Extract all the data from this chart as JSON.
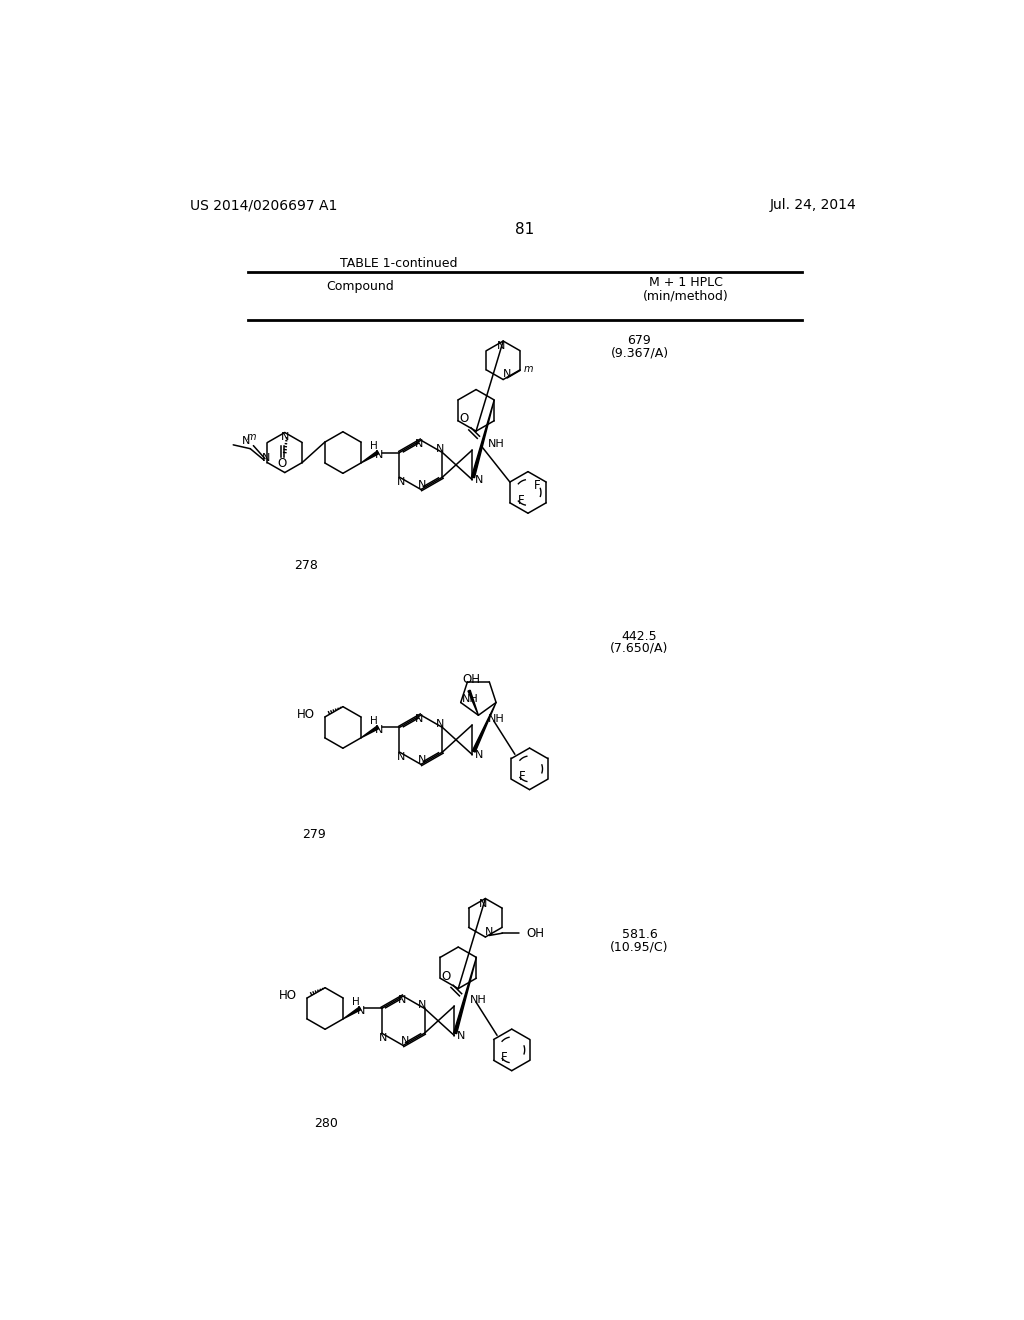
{
  "page_header_left": "US 2014/0206697 A1",
  "page_header_right": "Jul. 24, 2014",
  "page_number": "81",
  "table_title": "TABLE 1-continued",
  "col1_header": "Compound",
  "col2_header_line1": "M + 1 HPLC",
  "col2_header_line2": "(min/method)",
  "c278_ms": "679",
  "c278_method": "(9.367/A)",
  "c279_ms": "442.5",
  "c279_method": "(7.650/A)",
  "c280_ms": "581.6",
  "c280_method": "(10.95/C)",
  "c278_num": "278",
  "c279_num": "279",
  "c280_num": "280",
  "background_color": "#ffffff",
  "text_color": "#000000"
}
